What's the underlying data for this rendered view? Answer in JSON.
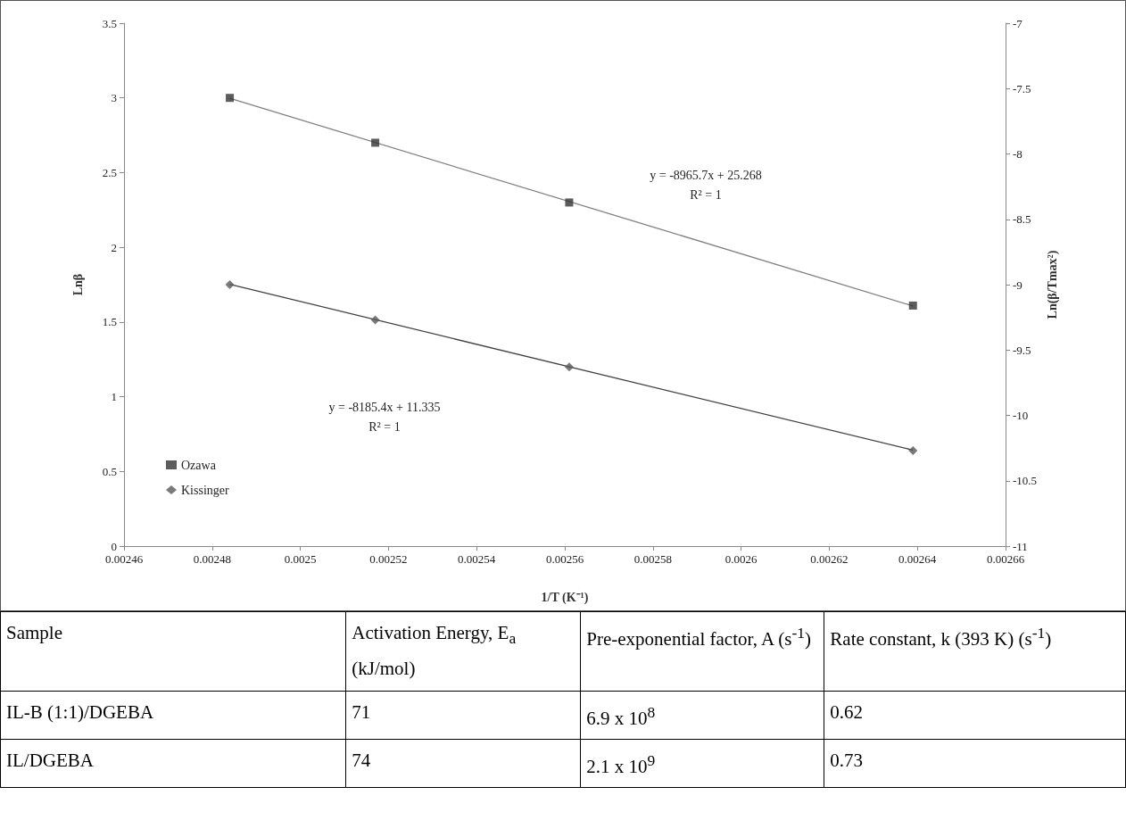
{
  "chart_data": [
    {
      "type": "scatter",
      "xlabel": "1/T (K⁻¹)",
      "ylabel": "Lnβ",
      "y2label": "Ln(β/Tmax²)",
      "xlim": [
        0.00246,
        0.00266
      ],
      "xticks": [
        0.00246,
        0.00248,
        0.0025,
        0.00252,
        0.00254,
        0.00256,
        0.00258,
        0.0026,
        0.00262,
        0.00264,
        0.00266
      ],
      "ylim": [
        0,
        3.5
      ],
      "yticks": [
        0,
        0.5,
        1,
        1.5,
        2,
        2.5,
        3,
        3.5
      ],
      "y2lim": [
        -11,
        -7
      ],
      "y2ticks": [
        -11,
        -10.5,
        -10,
        -9.5,
        -9,
        -8.5,
        -8,
        -7.5,
        -7
      ],
      "legend": "left",
      "series": [
        {
          "name": "Ozawa",
          "color": "#333333",
          "marker": "square",
          "x": [
            0.002484,
            0.002517,
            0.002561,
            0.002639
          ],
          "values": [
            3.0,
            2.7,
            2.3,
            1.61
          ]
        },
        {
          "name": "Kissinger",
          "color": "#595959",
          "marker": "diamond",
          "axis": "y2",
          "x": [
            0.002484,
            0.002517,
            0.002561,
            0.002639
          ],
          "values": [
            -9.0,
            -9.27,
            -9.63,
            -10.27
          ]
        },
        {
          "type": "line",
          "color": "#808080",
          "marker": "none",
          "x": [
            0.002484,
            0.002639
          ],
          "values": [
            2.997,
            1.607
          ]
        },
        {
          "type": "line",
          "color": "#404040",
          "marker": "none",
          "axis": "y2",
          "x": [
            0.002484,
            0.002639
          ],
          "values": [
            -8.998,
            -10.266
          ]
        }
      ],
      "annotations": [
        "y = -8965.7x + 25.268",
        "R² = 1",
        "y = -8185.4x + 11.335",
        "R² = 1"
      ]
    },
    {
      "type": "other",
      "annotations": [
        "Sample",
        "Activation Energy, E$_{a}$ (kJ/mol)",
        "Pre-exponential factor, A (s$^{-1}$)",
        "Rate constant, k (393 K) (s$^{-1}$)",
        "IL-B (1:1)/DGEBA",
        "71",
        "6.9 x 10$^{8}$",
        "0.62",
        "IL/DGEBA",
        "74",
        "2.1 x 10$^{9}$",
        "0.73"
      ]
    }
  ]
}
